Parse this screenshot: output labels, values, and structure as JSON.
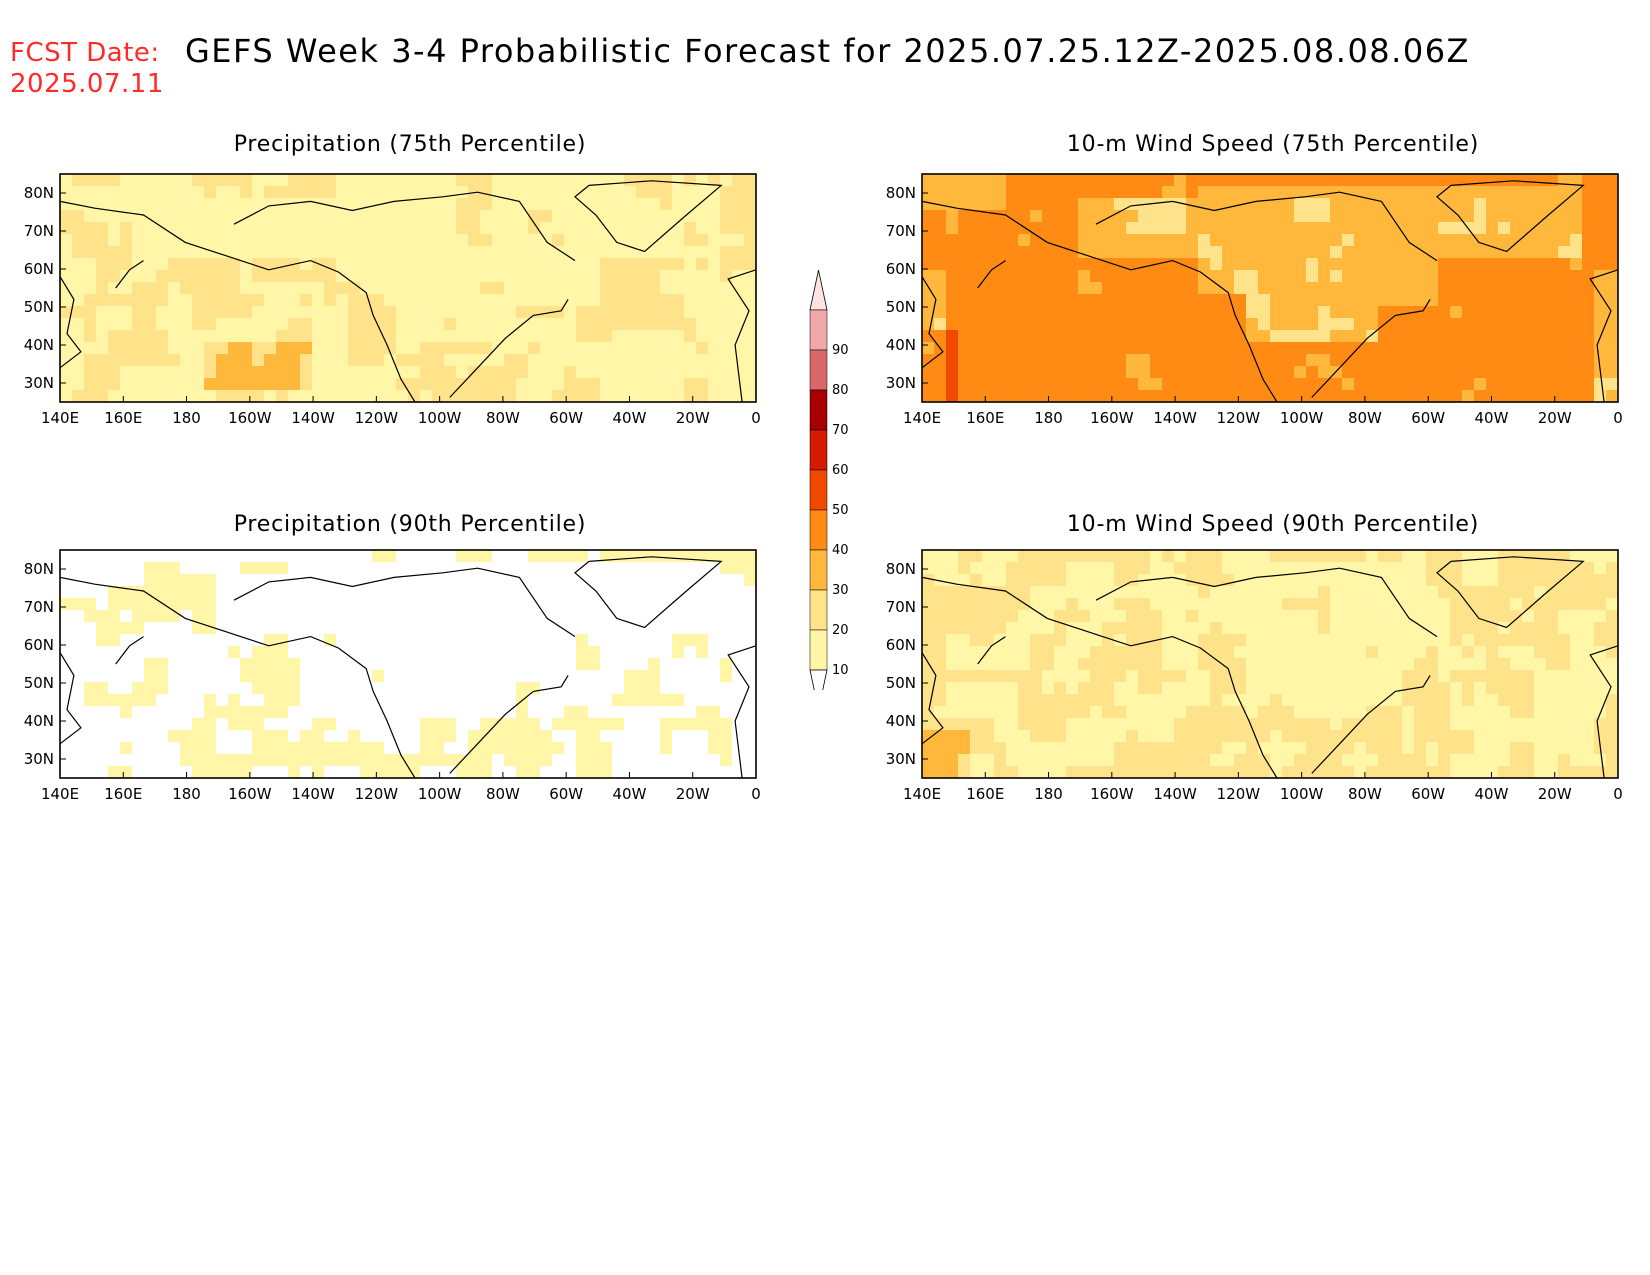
{
  "header": {
    "fcst_label": "FCST Date:",
    "fcst_date": "2025.07.11",
    "title": "GEFS Week 3-4 Probabilistic Forecast for 2025.07.25.12Z-2025.08.08.06Z"
  },
  "axes": {
    "lon_ticks": [
      "140E",
      "160E",
      "180",
      "160W",
      "140W",
      "120W",
      "100W",
      "80W",
      "60W",
      "40W",
      "20W",
      "0"
    ],
    "lat_ticks": [
      "80N",
      "70N",
      "60N",
      "50N",
      "40N",
      "30N"
    ]
  },
  "panels": [
    {
      "title": "Precipitation (75th Percentile)",
      "mean_level": 20
    },
    {
      "title": "10-m Wind Speed (75th Percentile)",
      "mean_level": 40
    },
    {
      "title": "Precipitation (90th Percentile)",
      "mean_level": 10
    },
    {
      "title": "10-m Wind Speed (90th Percentile)",
      "mean_level": 20
    }
  ],
  "colorbar": {
    "levels": [
      "10",
      "20",
      "30",
      "40",
      "50",
      "60",
      "70",
      "80",
      "90"
    ],
    "colors": [
      "#fff6a8",
      "#ffe38a",
      "#ffb83c",
      "#ff8a14",
      "#f04a00",
      "#d41a00",
      "#a80000",
      "#d9686a",
      "#f0a8aa",
      "#ffe2e2"
    ]
  }
}
